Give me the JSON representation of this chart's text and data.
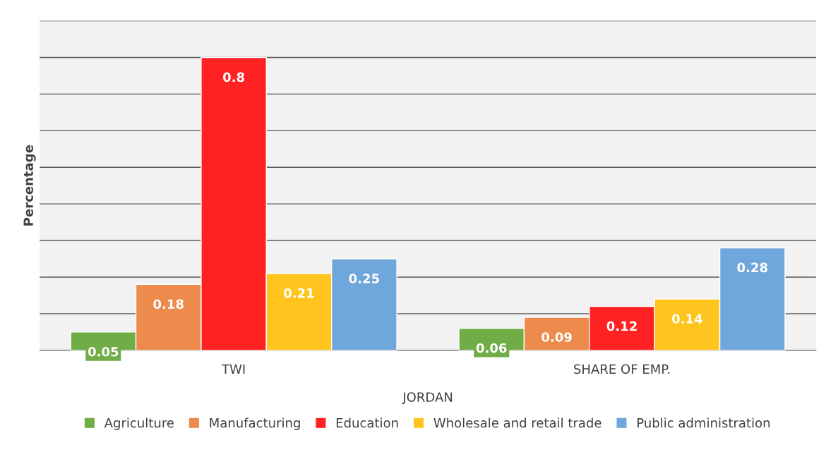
{
  "chart_data": {
    "type": "bar",
    "ylabel": "Percentage",
    "xlabel": "JORDAN",
    "categories": [
      "TWI",
      "SHARE OF EMP."
    ],
    "series": [
      {
        "name": "Agriculture",
        "color": "#70ad47",
        "values": [
          0.05,
          0.06
        ]
      },
      {
        "name": "Manufacturing",
        "color": "#ed8b4c",
        "values": [
          0.18,
          0.09
        ]
      },
      {
        "name": "Education",
        "color": "#ff2222",
        "values": [
          0.8,
          0.12
        ]
      },
      {
        "name": "Wholesale and retail trade",
        "color": "#ffc41e",
        "values": [
          0.21,
          0.14
        ]
      },
      {
        "name": "Public administration",
        "color": "#6fa6db",
        "values": [
          0.25,
          0.28
        ]
      }
    ],
    "ylim": [
      0,
      0.9
    ],
    "yticks": [
      {
        "value": 0,
        "label": null
      },
      {
        "value": 0.1,
        "label": null
      },
      {
        "value": 0.2,
        "label": null
      },
      {
        "value": 0.3,
        "label": null
      },
      {
        "value": 0.4,
        "label": null
      },
      {
        "value": 0.5,
        "label": null
      },
      {
        "value": 0.6,
        "label": null
      },
      {
        "value": 0.7,
        "label": null
      },
      {
        "value": 0.8,
        "label": null
      },
      {
        "value": 0.9,
        "label": null
      }
    ],
    "grid": "y",
    "legend": "bottom",
    "data_labels": true,
    "tick_labels": "x"
  }
}
